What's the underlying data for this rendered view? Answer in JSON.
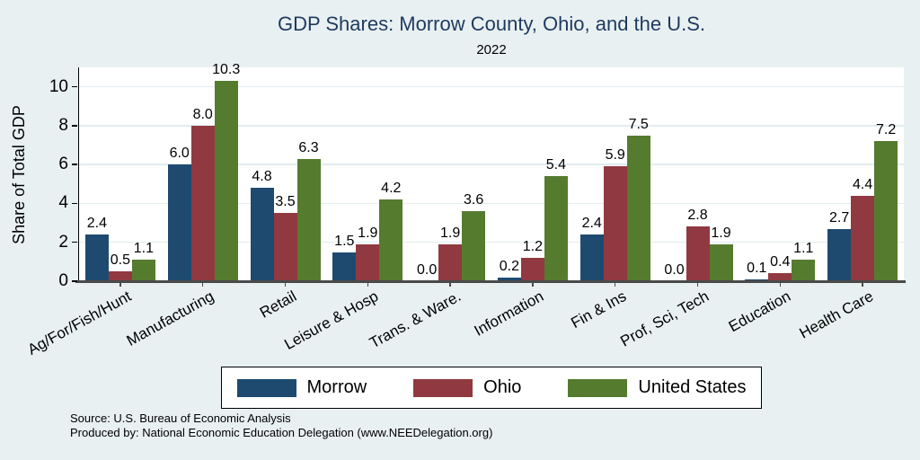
{
  "header": {
    "title": "GDP Shares: Morrow County, Ohio, and the U.S.",
    "subtitle": "2022"
  },
  "footer": {
    "source": "Source: U.S. Bureau of Economic Analysis",
    "produced_by": "Produced by: National Economic Education Delegation (www.NEEDelegation.org)"
  },
  "colors": {
    "background": "#e9f0f2",
    "plot_background": "#ffffff",
    "gridline": "#e2ecef",
    "title_text": "#1e3a5f",
    "y_axis_line": "#000000",
    "x_axis_line": "#4a4a4a",
    "morrow": "#1e4a70",
    "ohio": "#913940",
    "united_states": "#557b2f"
  },
  "chart_data": {
    "type": "bar",
    "title": "GDP Shares: Morrow County, Ohio, and the U.S.",
    "subtitle": "2022",
    "xlabel": "",
    "ylabel": "Share of Total GDP",
    "ylim": [
      0,
      11
    ],
    "yticks": [
      0,
      2,
      4,
      6,
      8,
      10
    ],
    "grid": true,
    "legend_position": "bottom",
    "value_label_decimals": 1,
    "categories": [
      "Ag/For/Fish/Hunt",
      "Manufacturing",
      "Retail",
      "Leisure & Hosp",
      "Trans. & Ware.",
      "Information",
      "Fin & Ins",
      "Prof, Sci, Tech",
      "Education",
      "Health Care"
    ],
    "series": [
      {
        "name": "Morrow",
        "color": "#1e4a70",
        "values": [
          2.4,
          6.0,
          4.8,
          1.5,
          0.0,
          0.2,
          2.4,
          0.0,
          0.1,
          2.7
        ]
      },
      {
        "name": "Ohio",
        "color": "#913940",
        "values": [
          0.5,
          8.0,
          3.5,
          1.9,
          1.9,
          1.2,
          5.9,
          2.8,
          0.4,
          4.4
        ]
      },
      {
        "name": "United States",
        "color": "#557b2f",
        "values": [
          1.1,
          10.3,
          6.3,
          4.2,
          3.6,
          5.4,
          7.5,
          1.9,
          1.1,
          7.2
        ]
      }
    ]
  }
}
